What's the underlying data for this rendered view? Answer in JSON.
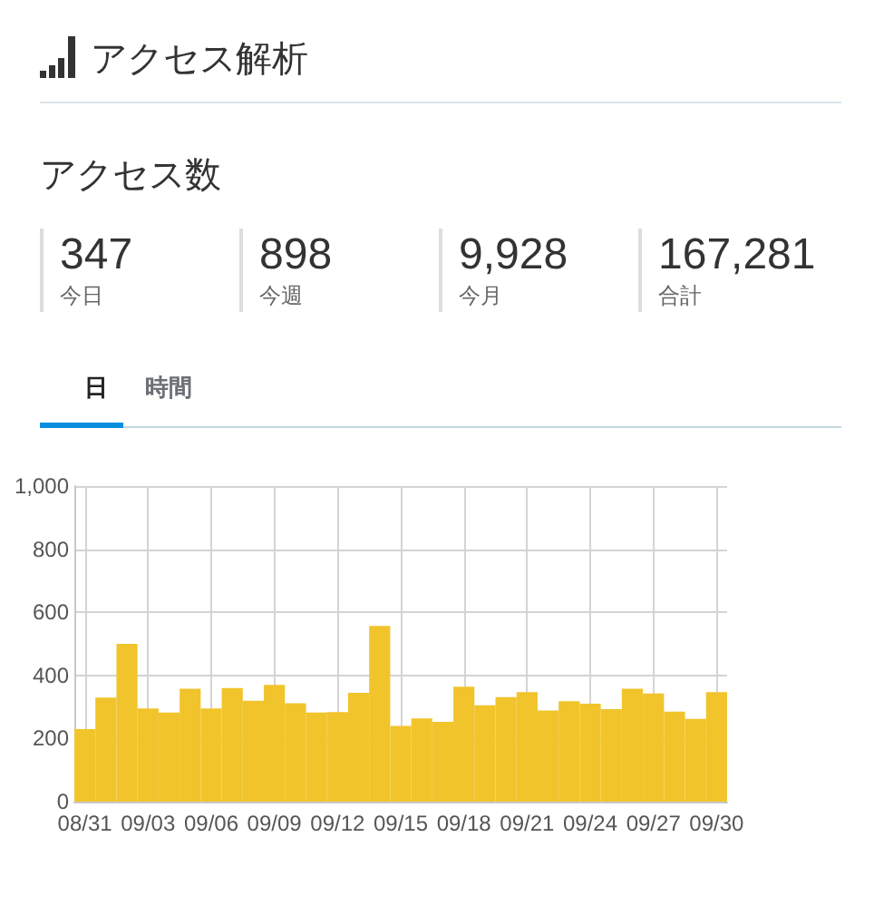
{
  "chart_data": {
    "type": "bar",
    "title": "アクセス解析",
    "subtitle": "アクセス数",
    "annotations": [
      "347",
      "今日",
      "898",
      "今週",
      "9,928",
      "今月",
      "167,281",
      "合計",
      "日",
      "時間"
    ],
    "categories": [
      "08/31",
      null,
      null,
      "09/03",
      null,
      null,
      "09/06",
      null,
      null,
      "09/09",
      null,
      null,
      "09/12",
      null,
      null,
      "09/15",
      null,
      null,
      "09/18",
      null,
      null,
      "09/21",
      null,
      null,
      "09/24",
      null,
      null,
      "09/27",
      null,
      null,
      "09/30"
    ],
    "values": [
      230,
      330,
      500,
      295,
      282,
      358,
      295,
      360,
      320,
      370,
      312,
      282,
      284,
      345,
      557,
      240,
      264,
      253,
      364,
      305,
      331,
      347,
      289,
      318,
      310,
      293,
      358,
      343,
      285,
      262,
      347
    ],
    "color": "#f1c42c",
    "ylim": [
      0,
      1000
    ],
    "yticks": [
      0,
      200,
      400,
      600,
      800,
      {
        "value": 1000,
        "label": "1,000"
      }
    ],
    "grid": true
  }
}
